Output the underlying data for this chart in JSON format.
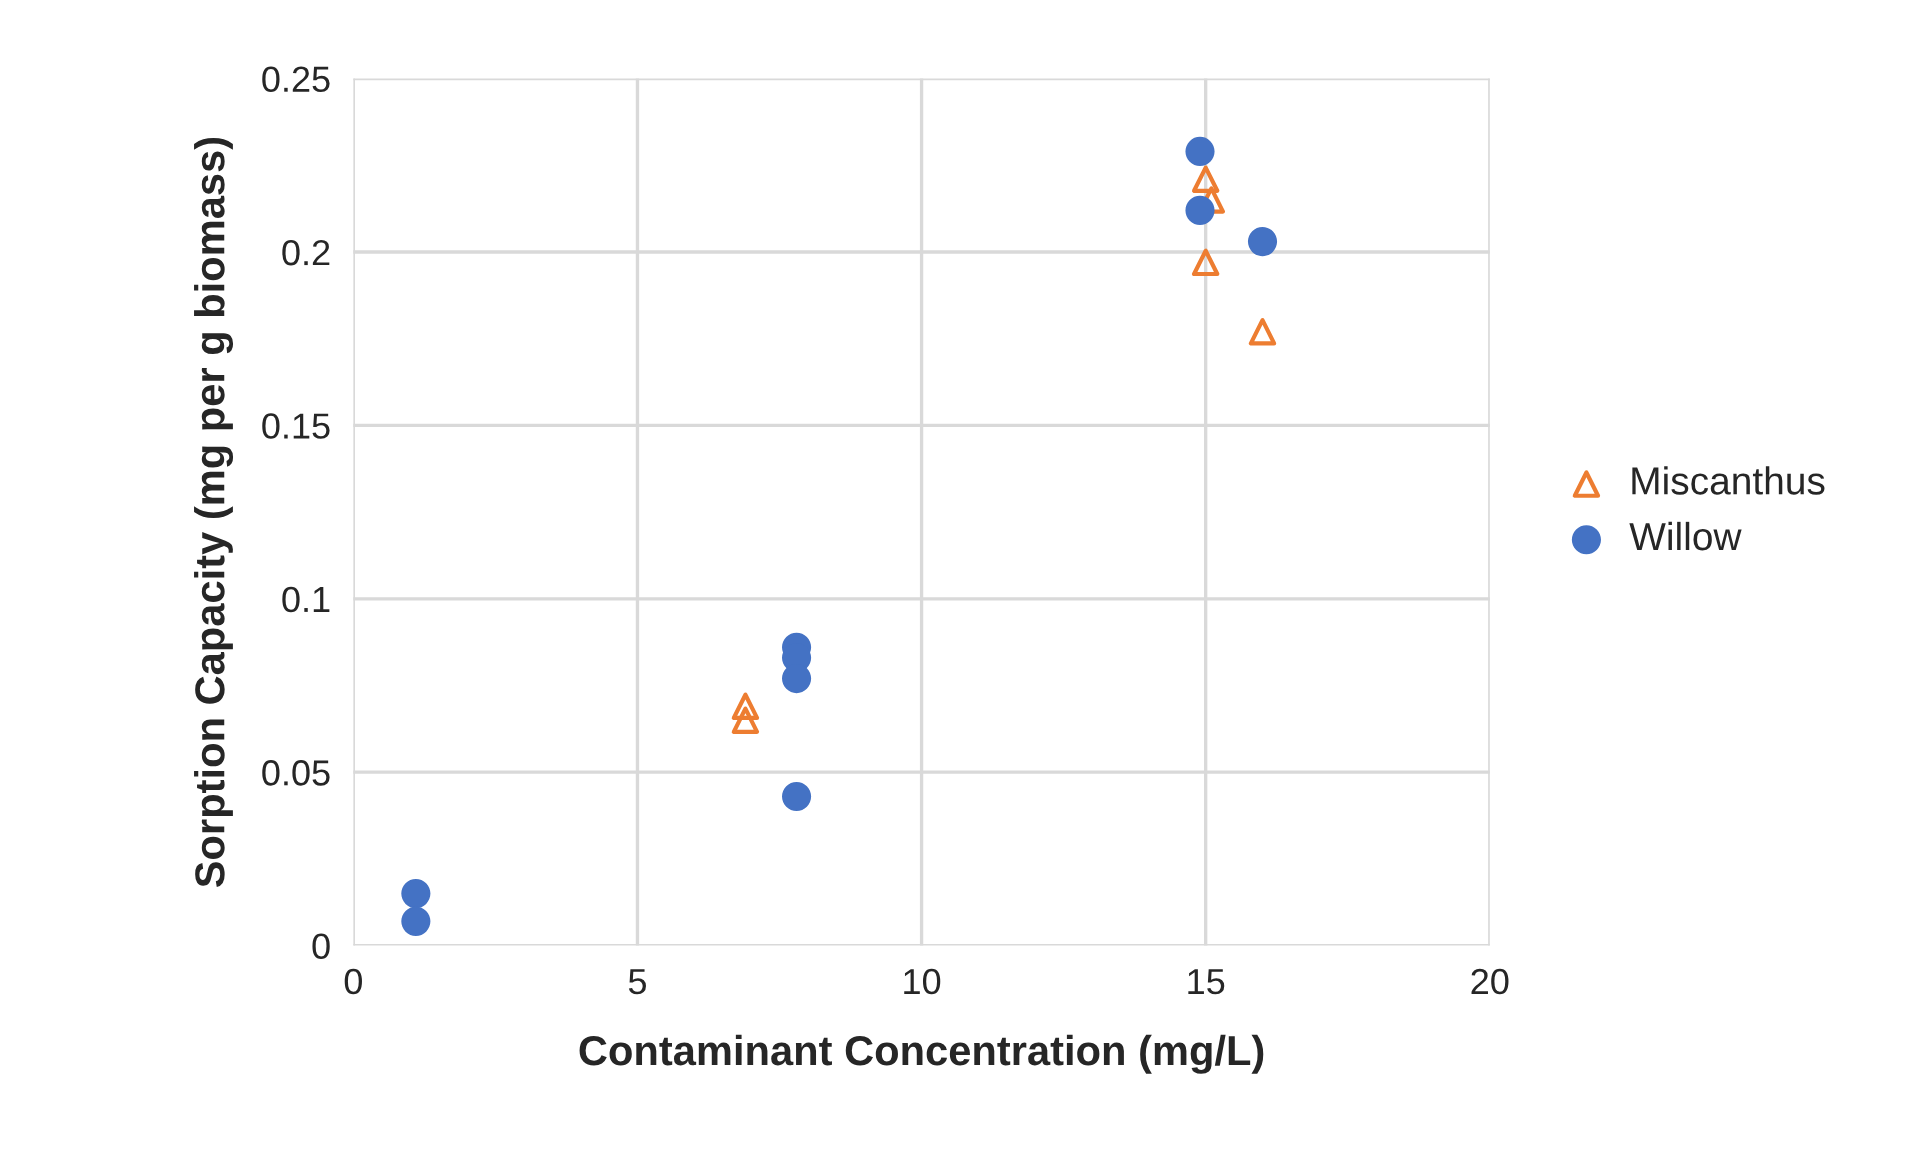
{
  "chart_data": {
    "type": "scatter",
    "xlabel": "Contaminant Concentration (mg/L)",
    "ylabel": "Sorption Capacity (mg per g biomass)",
    "xlim": [
      0,
      20
    ],
    "xticks": [
      0,
      5,
      10,
      15,
      20
    ],
    "ylim": [
      0,
      0.25
    ],
    "yticks": [
      0,
      0.05,
      0.1,
      0.15,
      0.2,
      0.25
    ],
    "grid": true,
    "legend": "right",
    "series": [
      {
        "name": "Miscanthus",
        "color": "#ed7d31",
        "marker": "triangle",
        "x": [
          6.9,
          6.9,
          15.0,
          15.1,
          15.0,
          16.0
        ],
        "values": [
          0.069,
          0.065,
          0.221,
          0.215,
          0.197,
          0.177
        ]
      },
      {
        "name": "Willow",
        "color": "#4472c4",
        "marker": "circle",
        "x": [
          1.1,
          1.1,
          7.8,
          7.8,
          7.8,
          7.8,
          14.9,
          14.9,
          16.0
        ],
        "values": [
          0.015,
          0.007,
          0.086,
          0.083,
          0.077,
          0.043,
          0.229,
          0.212,
          0.203
        ]
      }
    ]
  }
}
